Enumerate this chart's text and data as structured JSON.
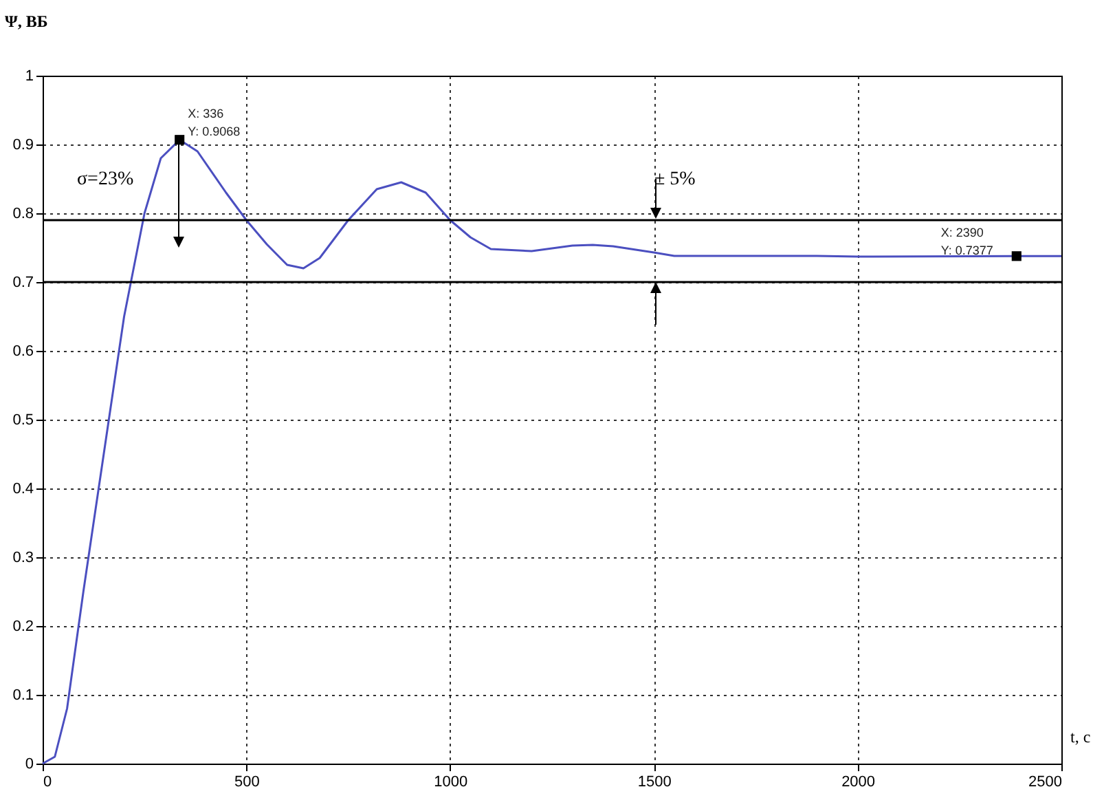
{
  "chart_data": {
    "type": "line",
    "xlabel": "t, c",
    "ylabel": "Ψ, ВБ",
    "xlim": [
      0,
      2500
    ],
    "xticks": [
      0,
      500,
      1000,
      1500,
      2000,
      2500
    ],
    "ylim": [
      0,
      1
    ],
    "yticks": [
      0,
      0.1,
      0.2,
      0.3,
      0.4,
      0.5,
      0.6,
      0.7,
      0.8,
      0.9,
      1
    ],
    "grid": true,
    "series": [
      {
        "color": "#4b4fc0",
        "marker": "none",
        "x": [
          0,
          30,
          60,
          100,
          150,
          200,
          250,
          290,
          336,
          380,
          450,
          500,
          550,
          600,
          640,
          680,
          750,
          820,
          880,
          940,
          1000,
          1050,
          1100,
          1200,
          1300,
          1350,
          1400,
          1500,
          1550,
          1700,
          1900,
          2000,
          2390,
          2500
        ],
        "values": [
          0,
          0.01,
          0.08,
          0.25,
          0.45,
          0.65,
          0.8,
          0.88,
          0.9068,
          0.89,
          0.83,
          0.79,
          0.755,
          0.725,
          0.72,
          0.735,
          0.79,
          0.835,
          0.845,
          0.83,
          0.79,
          0.765,
          0.748,
          0.745,
          0.753,
          0.754,
          0.752,
          0.743,
          0.738,
          0.738,
          0.738,
          0.737,
          0.7377,
          0.7377
        ]
      },
      {
        "type": "scatter",
        "color": "#000000",
        "marker": "square",
        "x": [
          336,
          2390
        ],
        "values": [
          0.9068,
          0.7377
        ]
      }
    ],
    "ref_lines": [
      {
        "axis": "y",
        "value": 0.79,
        "color": "#000000"
      },
      {
        "axis": "y",
        "value": 0.7,
        "color": "#000000"
      }
    ],
    "annotations": [
      {
        "text": "X: 336\nY: 0.9068",
        "x": 336,
        "y": 0.9068
      },
      {
        "text": "X: 2390\nY: 0.7377",
        "x": 2390,
        "y": 0.7377
      },
      "σ=23%",
      "± 5%"
    ]
  }
}
